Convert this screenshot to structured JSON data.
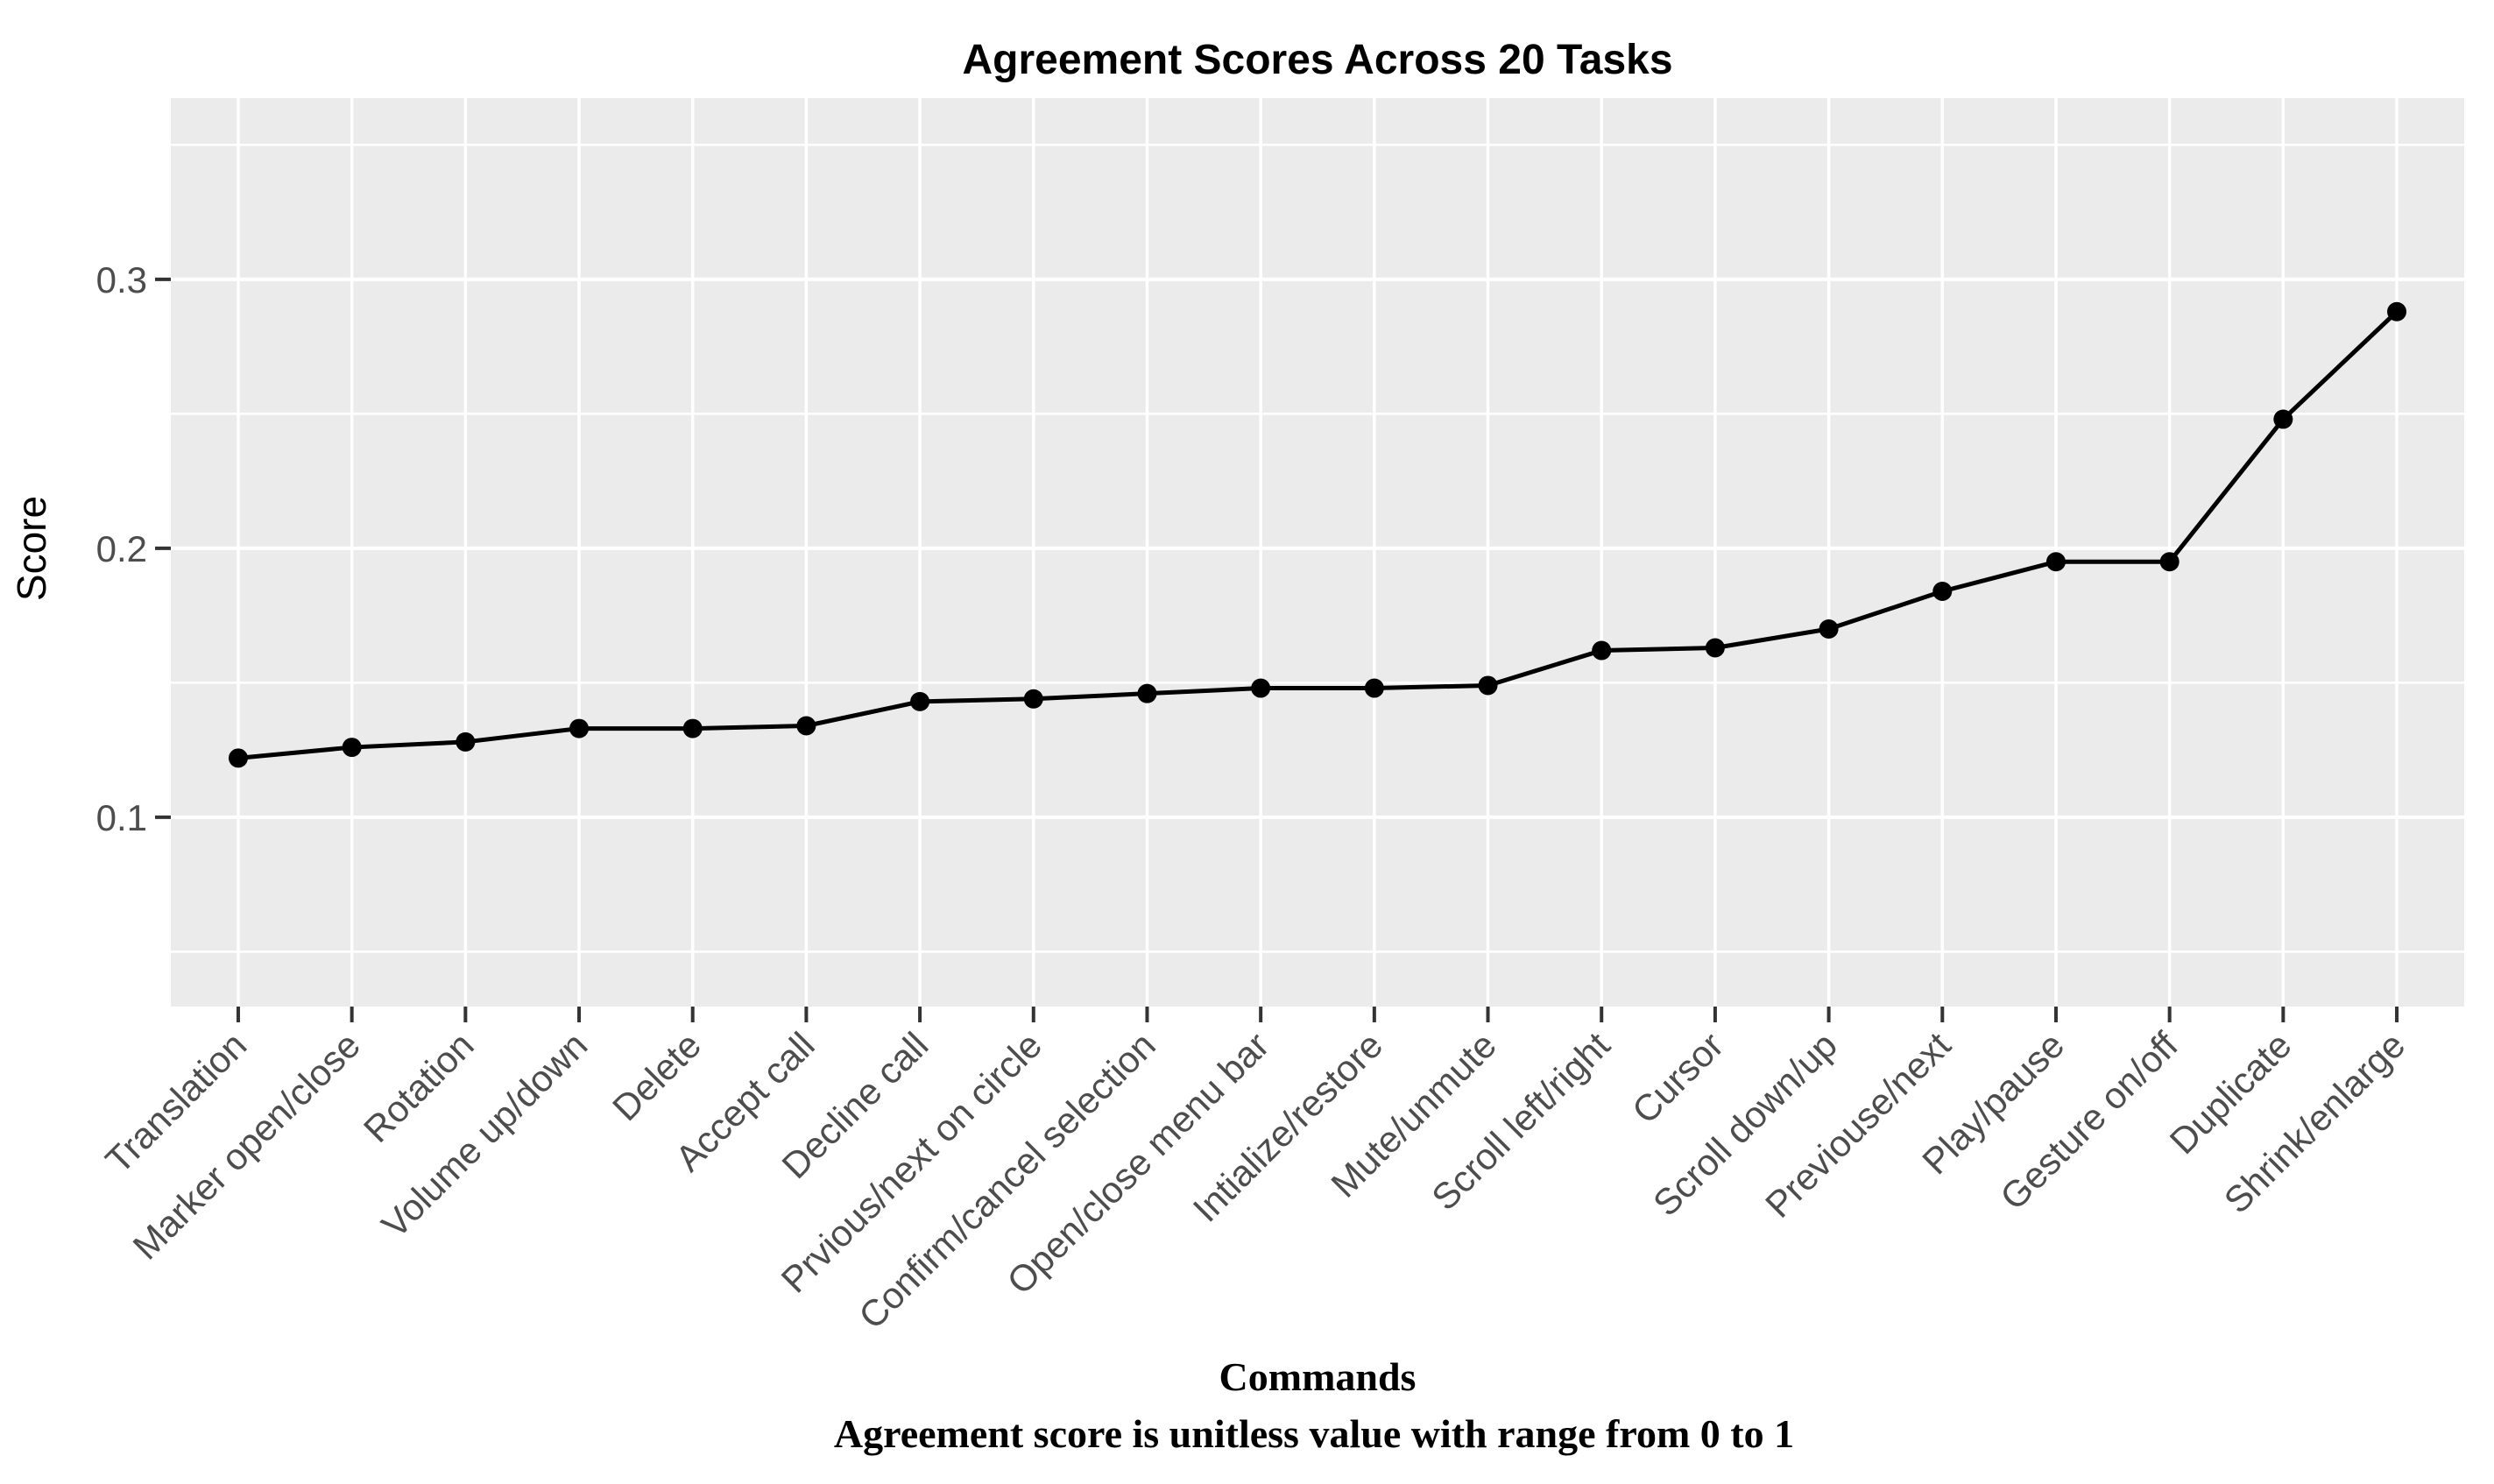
{
  "page": {
    "background": "#ffffff"
  },
  "chart_data": {
    "type": "line",
    "title": "Agreement Scores Across 20 Tasks",
    "ylabel": "Score",
    "xlabel": "Commands",
    "caption": "Agreement score is unitless value with range from 0 to 1",
    "categories": [
      "Translation",
      "Marker open/close",
      "Rotation",
      "Volume up/down",
      "Delete",
      "Accept call",
      "Decline call",
      "Prvious/next on circle",
      "Confirm/cancel selection",
      "Open/close menu bar",
      "Intialize/restore",
      "Mute/unmute",
      "Scroll left/right",
      "Cursor",
      "Scroll down/up",
      "Previouse/next",
      "Play/pause",
      "Gesture on/off",
      "Duplicate",
      "Shrink/enlarge"
    ],
    "values": [
      0.122,
      0.126,
      0.128,
      0.133,
      0.133,
      0.134,
      0.143,
      0.144,
      0.146,
      0.148,
      0.148,
      0.149,
      0.162,
      0.163,
      0.17,
      0.184,
      0.195,
      0.195,
      0.248,
      0.288
    ],
    "ylim": [
      0.0296,
      0.3674
    ],
    "y_major_ticks": [
      {
        "v": 0.1,
        "label": "0.1"
      },
      {
        "v": 0.2,
        "label": "0.2"
      },
      {
        "v": 0.3,
        "label": "0.3"
      }
    ],
    "y_minor_ticks": [
      0.05,
      0.15,
      0.25,
      0.35
    ],
    "grid": true,
    "legend_position": "none",
    "colors": {
      "panel_background": "#ebebeb",
      "grid_line": "#ffffff",
      "series_line": "#000000",
      "point_fill": "#000000",
      "axis_text": "#4d4d4d",
      "tick_mark": "#333333",
      "title_text": "#000000"
    }
  }
}
